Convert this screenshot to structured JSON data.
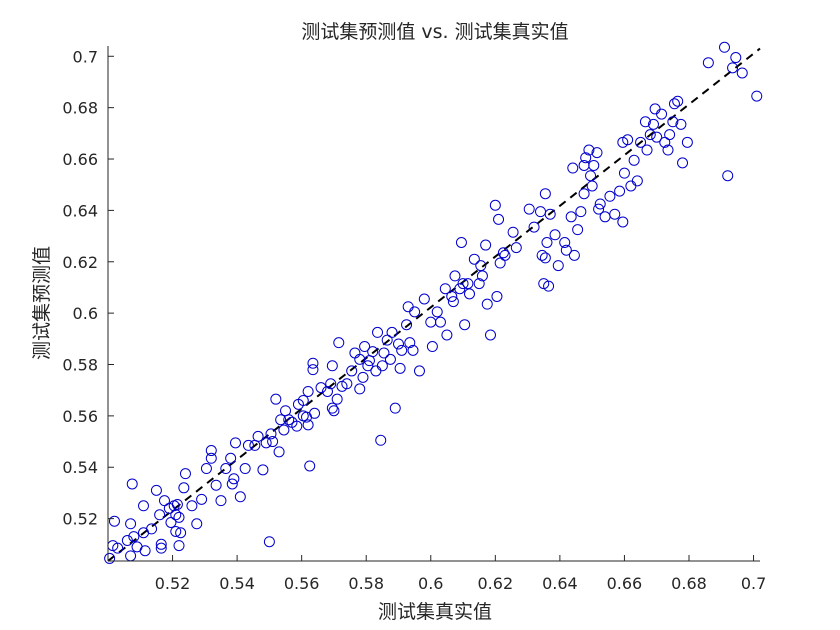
{
  "chart_data": {
    "type": "scatter",
    "title": "测试集预测值 vs. 测试集真实值",
    "xlabel": "测试集真实值",
    "ylabel": "测试集预测值",
    "xlim": [
      0.5,
      0.702
    ],
    "ylim": [
      0.5035,
      0.704
    ],
    "xticks": [
      "0.52",
      "0.54",
      "0.56",
      "0.58",
      "0.6",
      "0.62",
      "0.64",
      "0.66",
      "0.68",
      "0.7"
    ],
    "yticks": [
      "0.52",
      "0.54",
      "0.56",
      "0.58",
      "0.6",
      "0.62",
      "0.64",
      "0.66",
      "0.68",
      "0.7"
    ],
    "grid": false,
    "marker_color": "#0000cc",
    "reference_line": {
      "style": "dashed",
      "color": "#000000",
      "from": [
        0.5,
        0.5035
      ],
      "to": [
        0.702,
        0.703
      ]
    },
    "series": [
      {
        "marker": "circle",
        "points": [
          [
            0.5005,
            0.5045
          ],
          [
            0.5015,
            0.5095
          ],
          [
            0.502,
            0.519
          ],
          [
            0.503,
            0.5085
          ],
          [
            0.506,
            0.5115
          ],
          [
            0.507,
            0.5055
          ],
          [
            0.507,
            0.518
          ],
          [
            0.5075,
            0.5335
          ],
          [
            0.508,
            0.513
          ],
          [
            0.509,
            0.509
          ],
          [
            0.511,
            0.5145
          ],
          [
            0.511,
            0.525
          ],
          [
            0.5115,
            0.5075
          ],
          [
            0.5135,
            0.516
          ],
          [
            0.515,
            0.531
          ],
          [
            0.516,
            0.5215
          ],
          [
            0.5165,
            0.5085
          ],
          [
            0.5165,
            0.51
          ],
          [
            0.5175,
            0.527
          ],
          [
            0.519,
            0.524
          ],
          [
            0.5195,
            0.5185
          ],
          [
            0.5205,
            0.525
          ],
          [
            0.521,
            0.5215
          ],
          [
            0.521,
            0.515
          ],
          [
            0.5215,
            0.5255
          ],
          [
            0.522,
            0.5205
          ],
          [
            0.522,
            0.5095
          ],
          [
            0.5225,
            0.5145
          ],
          [
            0.5235,
            0.532
          ],
          [
            0.524,
            0.5375
          ],
          [
            0.526,
            0.525
          ],
          [
            0.5275,
            0.518
          ],
          [
            0.529,
            0.5275
          ],
          [
            0.5305,
            0.5395
          ],
          [
            0.532,
            0.5465
          ],
          [
            0.532,
            0.5435
          ],
          [
            0.5335,
            0.533
          ],
          [
            0.535,
            0.527
          ],
          [
            0.5365,
            0.5395
          ],
          [
            0.538,
            0.5435
          ],
          [
            0.5385,
            0.5335
          ],
          [
            0.539,
            0.5355
          ],
          [
            0.5395,
            0.5495
          ],
          [
            0.541,
            0.5285
          ],
          [
            0.5425,
            0.5395
          ],
          [
            0.5435,
            0.5485
          ],
          [
            0.5455,
            0.5485
          ],
          [
            0.5465,
            0.552
          ],
          [
            0.548,
            0.539
          ],
          [
            0.549,
            0.5495
          ],
          [
            0.55,
            0.511
          ],
          [
            0.5505,
            0.553
          ],
          [
            0.551,
            0.55
          ],
          [
            0.552,
            0.5665
          ],
          [
            0.553,
            0.546
          ],
          [
            0.5535,
            0.5585
          ],
          [
            0.5545,
            0.5545
          ],
          [
            0.555,
            0.562
          ],
          [
            0.556,
            0.5585
          ],
          [
            0.557,
            0.5575
          ],
          [
            0.5585,
            0.556
          ],
          [
            0.559,
            0.5645
          ],
          [
            0.5605,
            0.566
          ],
          [
            0.5605,
            0.56
          ],
          [
            0.5615,
            0.5595
          ],
          [
            0.562,
            0.5565
          ],
          [
            0.562,
            0.5695
          ],
          [
            0.5625,
            0.5405
          ],
          [
            0.5635,
            0.578
          ],
          [
            0.5635,
            0.5805
          ],
          [
            0.564,
            0.561
          ],
          [
            0.566,
            0.571
          ],
          [
            0.568,
            0.5695
          ],
          [
            0.569,
            0.5725
          ],
          [
            0.5695,
            0.5795
          ],
          [
            0.5695,
            0.563
          ],
          [
            0.57,
            0.562
          ],
          [
            0.571,
            0.5665
          ],
          [
            0.5715,
            0.5885
          ],
          [
            0.5725,
            0.5715
          ],
          [
            0.574,
            0.5725
          ],
          [
            0.5755,
            0.5775
          ],
          [
            0.5765,
            0.5845
          ],
          [
            0.578,
            0.582
          ],
          [
            0.578,
            0.5705
          ],
          [
            0.579,
            0.575
          ],
          [
            0.5795,
            0.587
          ],
          [
            0.5805,
            0.5795
          ],
          [
            0.581,
            0.5815
          ],
          [
            0.582,
            0.585
          ],
          [
            0.583,
            0.5775
          ],
          [
            0.5835,
            0.5925
          ],
          [
            0.5845,
            0.5505
          ],
          [
            0.585,
            0.5795
          ],
          [
            0.5855,
            0.5845
          ],
          [
            0.5865,
            0.5895
          ],
          [
            0.5875,
            0.582
          ],
          [
            0.588,
            0.5925
          ],
          [
            0.589,
            0.563
          ],
          [
            0.59,
            0.588
          ],
          [
            0.5905,
            0.5785
          ],
          [
            0.591,
            0.5855
          ],
          [
            0.5925,
            0.5955
          ],
          [
            0.593,
            0.6025
          ],
          [
            0.5935,
            0.5885
          ],
          [
            0.5945,
            0.5855
          ],
          [
            0.595,
            0.6005
          ],
          [
            0.5965,
            0.5775
          ],
          [
            0.598,
            0.6055
          ],
          [
            0.6,
            0.5965
          ],
          [
            0.6005,
            0.587
          ],
          [
            0.602,
            0.6005
          ],
          [
            0.603,
            0.5965
          ],
          [
            0.6045,
            0.6095
          ],
          [
            0.605,
            0.5915
          ],
          [
            0.6065,
            0.6065
          ],
          [
            0.607,
            0.6045
          ],
          [
            0.6075,
            0.6145
          ],
          [
            0.609,
            0.6095
          ],
          [
            0.6095,
            0.6275
          ],
          [
            0.61,
            0.6115
          ],
          [
            0.6105,
            0.5955
          ],
          [
            0.6115,
            0.6115
          ],
          [
            0.612,
            0.6075
          ],
          [
            0.6135,
            0.621
          ],
          [
            0.615,
            0.6115
          ],
          [
            0.6155,
            0.6185
          ],
          [
            0.616,
            0.6145
          ],
          [
            0.617,
            0.6265
          ],
          [
            0.6175,
            0.6035
          ],
          [
            0.6185,
            0.5915
          ],
          [
            0.62,
            0.642
          ],
          [
            0.6205,
            0.6065
          ],
          [
            0.621,
            0.6365
          ],
          [
            0.6215,
            0.6195
          ],
          [
            0.6225,
            0.6235
          ],
          [
            0.623,
            0.6225
          ],
          [
            0.6255,
            0.6315
          ],
          [
            0.6265,
            0.6255
          ],
          [
            0.6305,
            0.6405
          ],
          [
            0.632,
            0.6335
          ],
          [
            0.634,
            0.6395
          ],
          [
            0.6345,
            0.6225
          ],
          [
            0.635,
            0.6115
          ],
          [
            0.6355,
            0.6215
          ],
          [
            0.6355,
            0.6465
          ],
          [
            0.636,
            0.6275
          ],
          [
            0.6365,
            0.6105
          ],
          [
            0.637,
            0.6385
          ],
          [
            0.6385,
            0.6305
          ],
          [
            0.6395,
            0.6185
          ],
          [
            0.6415,
            0.6275
          ],
          [
            0.642,
            0.6245
          ],
          [
            0.6435,
            0.6375
          ],
          [
            0.644,
            0.6565
          ],
          [
            0.6445,
            0.6225
          ],
          [
            0.6455,
            0.6325
          ],
          [
            0.6465,
            0.6395
          ],
          [
            0.6475,
            0.6465
          ],
          [
            0.6475,
            0.6575
          ],
          [
            0.648,
            0.6605
          ],
          [
            0.649,
            0.6635
          ],
          [
            0.6495,
            0.6535
          ],
          [
            0.65,
            0.6495
          ],
          [
            0.6505,
            0.6575
          ],
          [
            0.6515,
            0.6625
          ],
          [
            0.652,
            0.6405
          ],
          [
            0.6525,
            0.6425
          ],
          [
            0.654,
            0.6375
          ],
          [
            0.6555,
            0.6455
          ],
          [
            0.657,
            0.6385
          ],
          [
            0.6585,
            0.6475
          ],
          [
            0.6595,
            0.6355
          ],
          [
            0.6595,
            0.6665
          ],
          [
            0.66,
            0.6545
          ],
          [
            0.661,
            0.6675
          ],
          [
            0.662,
            0.6495
          ],
          [
            0.663,
            0.6595
          ],
          [
            0.664,
            0.6515
          ],
          [
            0.665,
            0.6665
          ],
          [
            0.6665,
            0.6745
          ],
          [
            0.667,
            0.6635
          ],
          [
            0.668,
            0.6695
          ],
          [
            0.669,
            0.6735
          ],
          [
            0.6695,
            0.6795
          ],
          [
            0.67,
            0.6685
          ],
          [
            0.6715,
            0.6775
          ],
          [
            0.6725,
            0.6665
          ],
          [
            0.6735,
            0.6635
          ],
          [
            0.674,
            0.6695
          ],
          [
            0.675,
            0.6745
          ],
          [
            0.6755,
            0.6815
          ],
          [
            0.6765,
            0.6825
          ],
          [
            0.6775,
            0.6735
          ],
          [
            0.678,
            0.6585
          ],
          [
            0.6795,
            0.6665
          ],
          [
            0.686,
            0.6975
          ],
          [
            0.691,
            0.7035
          ],
          [
            0.692,
            0.6535
          ],
          [
            0.6935,
            0.6955
          ],
          [
            0.6945,
            0.6995
          ],
          [
            0.6965,
            0.6935
          ],
          [
            0.701,
            0.6845
          ]
        ]
      }
    ]
  }
}
